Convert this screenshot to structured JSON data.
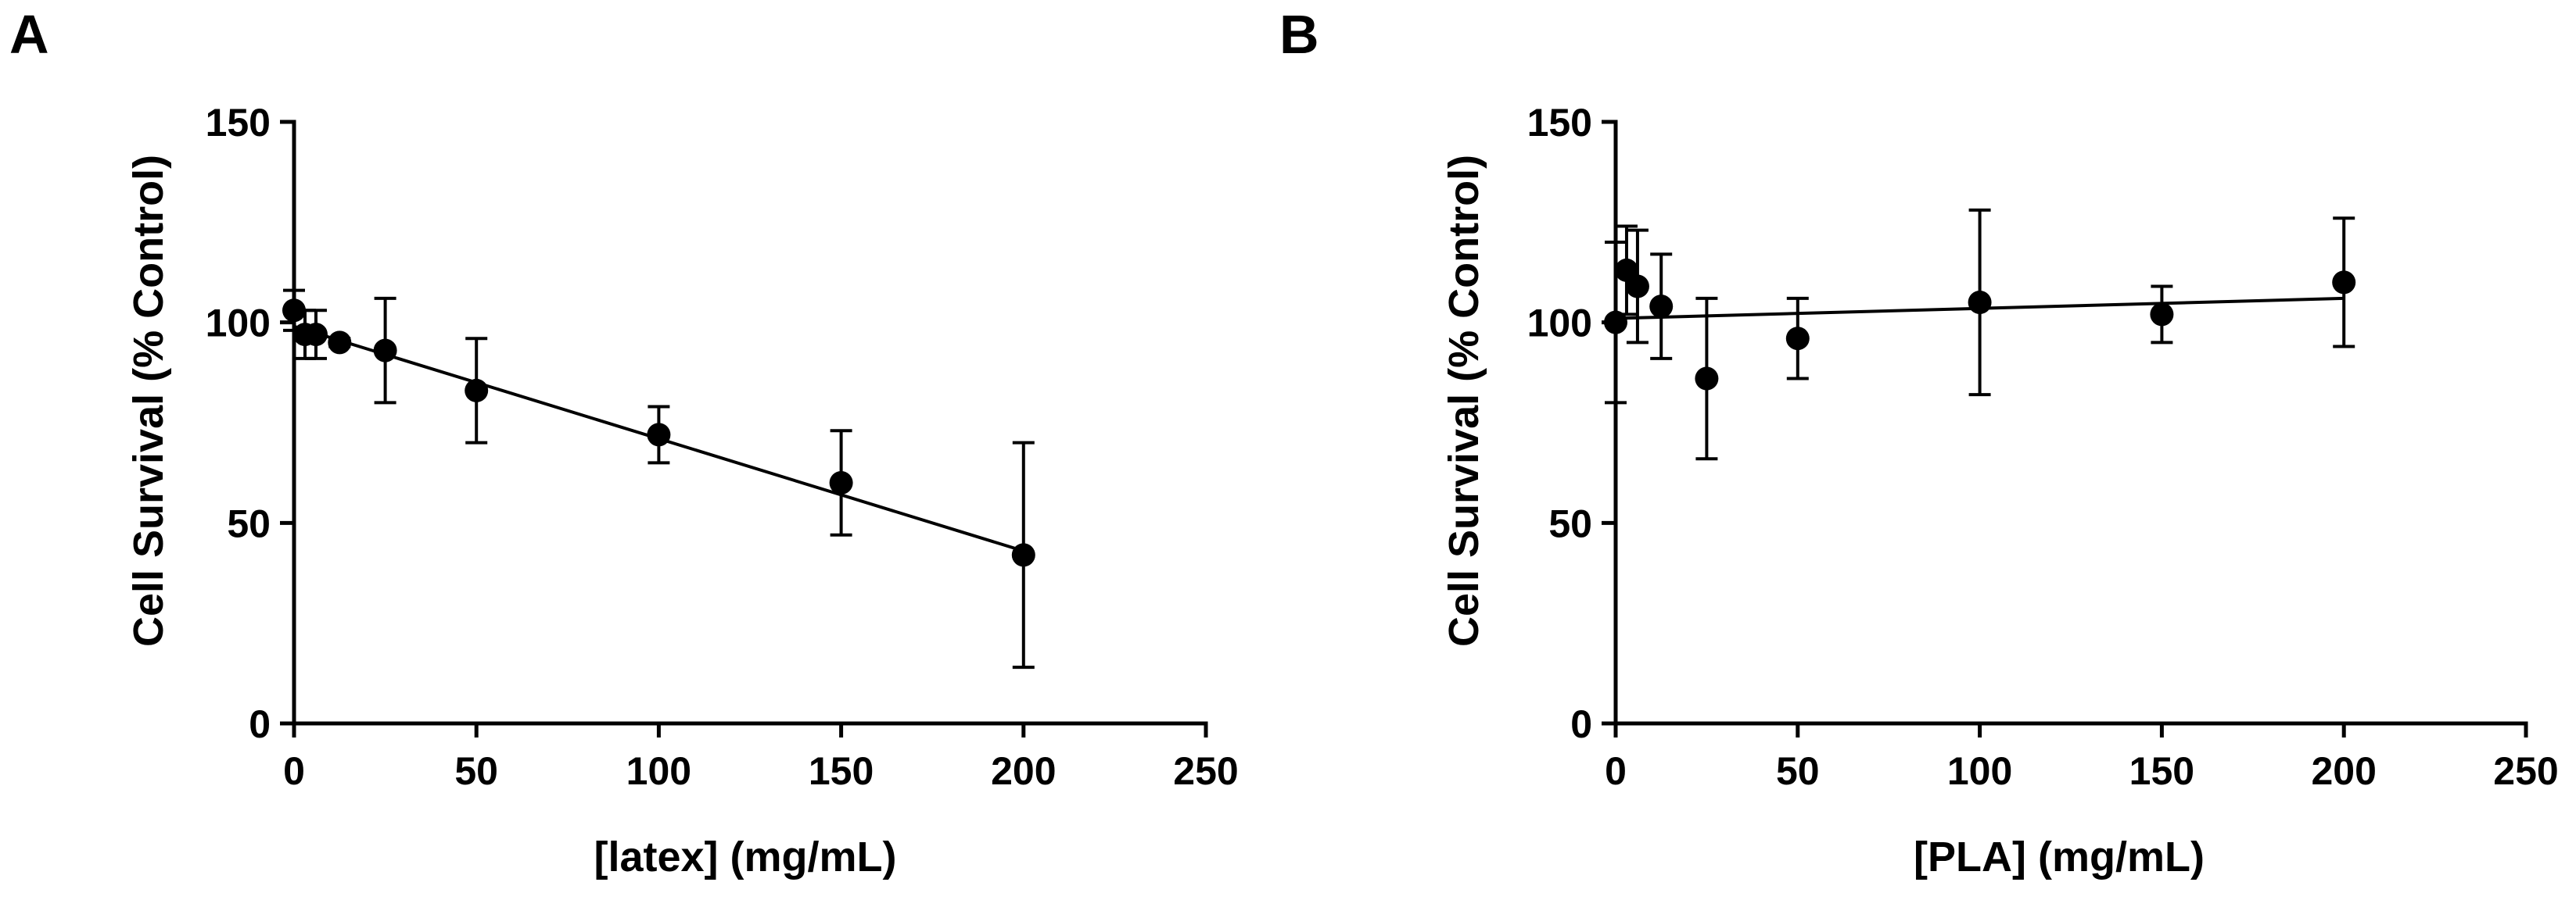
{
  "chart_data": [
    {
      "type": "scatter",
      "panel_label": "A",
      "title": "",
      "xlabel": "[latex] (mg/mL)",
      "ylabel": "Cell Survival (% Control)",
      "xlim": [
        0,
        250
      ],
      "ylim": [
        0,
        150
      ],
      "xticks": [
        "0",
        "50",
        "100",
        "150",
        "200",
        "250"
      ],
      "yticks": [
        "0",
        "50",
        "100",
        "150"
      ],
      "grid": false,
      "x": [
        0,
        3,
        6,
        12.5,
        25,
        50,
        100,
        150,
        200
      ],
      "y": [
        103,
        97,
        97,
        95,
        93,
        83,
        72,
        60,
        42
      ],
      "yerr": [
        5,
        6,
        6,
        1,
        13,
        13,
        7,
        13,
        28
      ],
      "fit": {
        "type": "linear",
        "x": [
          0,
          200
        ],
        "y": [
          99,
          43
        ]
      },
      "colors": {
        "marker": "#000000",
        "line": "#000000"
      }
    },
    {
      "type": "scatter",
      "panel_label": "B",
      "title": "",
      "xlabel": "[PLA] (mg/mL)",
      "ylabel": "Cell Survival (% Control)",
      "xlim": [
        0,
        250
      ],
      "ylim": [
        0,
        150
      ],
      "xticks": [
        "0",
        "50",
        "100",
        "150",
        "200",
        "250"
      ],
      "yticks": [
        "0",
        "50",
        "100",
        "150"
      ],
      "grid": false,
      "x": [
        0,
        3,
        6,
        12.5,
        25,
        50,
        100,
        150,
        200
      ],
      "y": [
        100,
        113,
        109,
        104,
        86,
        96,
        105,
        102,
        110
      ],
      "yerr": [
        20,
        11,
        14,
        13,
        20,
        10,
        23,
        7,
        16
      ],
      "fit": {
        "type": "linear",
        "x": [
          0,
          200
        ],
        "y": [
          101,
          106
        ]
      },
      "colors": {
        "marker": "#000000",
        "line": "#000000"
      }
    }
  ]
}
